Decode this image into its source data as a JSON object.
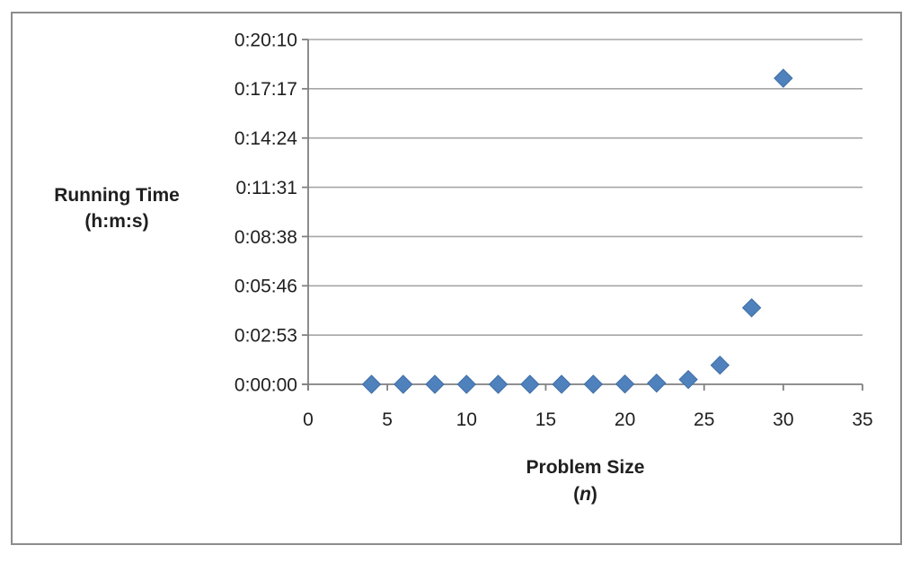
{
  "chart_data": {
    "type": "scatter",
    "title": "",
    "legend": false,
    "grid": true,
    "marker": "diamond",
    "series": [
      {
        "name": "Running Time",
        "x": [
          4,
          6,
          8,
          10,
          12,
          14,
          16,
          18,
          20,
          22,
          24,
          26,
          28,
          30
        ],
        "y_seconds": [
          1.6e-05,
          6.6e-05,
          0.000262,
          0.001049,
          0.004194,
          0.016777,
          0.067109,
          0.268435,
          1.048576,
          4.194304,
          16.777216,
          67.108864,
          268.435456,
          1073.741824
        ],
        "y_hms": [
          "0:00:00",
          "0:00:00",
          "0:00:00",
          "0:00:00",
          "0:00:00",
          "0:00:00",
          "0:00:00",
          "0:00:00",
          "0:00:01",
          "0:00:04",
          "0:00:17",
          "0:01:07",
          "0:04:28",
          "0:17:54"
        ]
      }
    ],
    "xlim": [
      0,
      35
    ],
    "ylim_seconds": [
      0,
      1209.6
    ],
    "x_ticks": [
      0,
      5,
      10,
      15,
      20,
      25,
      30,
      35
    ],
    "y_ticks": [
      {
        "seconds": 0,
        "label": "0:00:00"
      },
      {
        "seconds": 172.8,
        "label": "0:02:53"
      },
      {
        "seconds": 345.6,
        "label": "0:05:46"
      },
      {
        "seconds": 518.4,
        "label": "0:08:38"
      },
      {
        "seconds": 691.2,
        "label": "0:11:31"
      },
      {
        "seconds": 864,
        "label": "0:14:24"
      },
      {
        "seconds": 1036.8,
        "label": "0:17:17"
      },
      {
        "seconds": 1209.6,
        "label": "0:20:10"
      }
    ],
    "xlabel": {
      "line1": "Problem Size",
      "open": "(",
      "italic": "n",
      "close": ")"
    },
    "ylabel": {
      "line1": "Running Time",
      "line2": "(h:m:s)"
    },
    "colors": {
      "marker_fill": "#4F81BD",
      "marker_stroke": "#3F6EA6",
      "gridline": "#A6A6A6",
      "axis": "#808080",
      "frame_border": "#8C8C8C",
      "text": "#1F1F1F"
    }
  }
}
